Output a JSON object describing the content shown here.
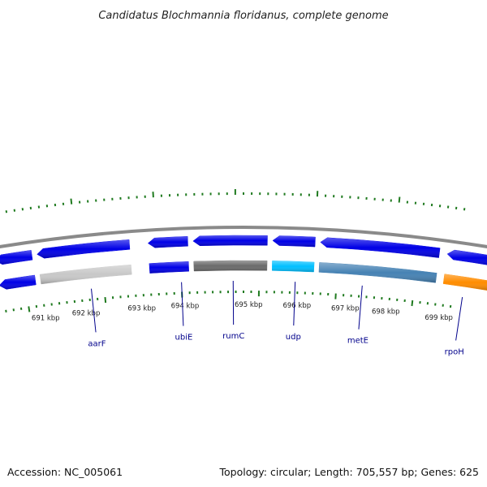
{
  "title": "Candidatus Blochmannia floridanus, complete genome",
  "footer": {
    "accession": "Accession: NC_005061",
    "summary": "Topology: circular; Length: 705,557 bp; Genes: 625"
  },
  "ticks": [
    "691 kbp",
    "692 kbp",
    "693 kbp",
    "694 kbp",
    "695 kbp",
    "696 kbp",
    "697 kbp",
    "698 kbp",
    "699 kbp"
  ],
  "genes": [
    {
      "name": "aarF",
      "color": "#c8c8c8"
    },
    {
      "name": "ubiE",
      "color": "#0000e6"
    },
    {
      "name": "rumC",
      "color": "#6b6b6b"
    },
    {
      "name": "udp",
      "color": "#00bfff"
    },
    {
      "name": "metE",
      "color": "#4682b4"
    },
    {
      "name": "rpoH",
      "color": "#ff8c00"
    }
  ],
  "colors": {
    "forward": "#0000e6",
    "backbone": "#8a8a8a",
    "tick": "#1f7a1f",
    "label": "#00008b"
  }
}
